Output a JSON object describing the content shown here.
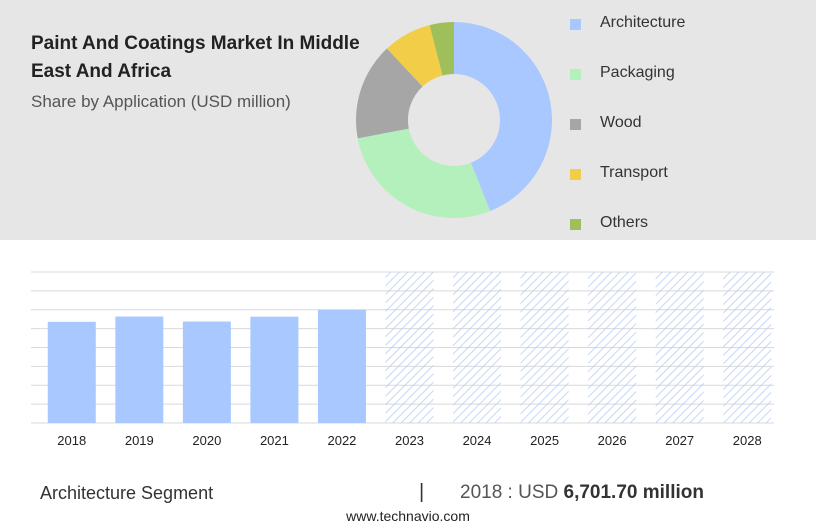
{
  "title": "Paint And Coatings Market In Middle East And Africa",
  "subtitle": "Share by Application (USD million)",
  "colors": {
    "Architecture": "#a8c8ff",
    "Packaging": "#b3f0bb",
    "Wood": "#a6a6a6",
    "Transport": "#f2cd47",
    "Others": "#9fbf5a",
    "forecast_hatch": "#b8cdf2",
    "grid": "#d9d9d9"
  },
  "chart_data": [
    {
      "type": "pie",
      "style": "donut",
      "categories": [
        "Architecture",
        "Packaging",
        "Wood",
        "Transport",
        "Others"
      ],
      "values": [
        44,
        28,
        16,
        8,
        4
      ],
      "legend": "right"
    },
    {
      "type": "bar",
      "categories": [
        "2018",
        "2019",
        "2020",
        "2021",
        "2022",
        "2023",
        "2024",
        "2025",
        "2026",
        "2027",
        "2028"
      ],
      "series": [
        {
          "name": "Architecture",
          "values": [
            6701.7,
            7050,
            6720,
            7040,
            7500,
            null,
            null,
            null,
            null,
            null,
            null
          ]
        }
      ],
      "forecast_categories": [
        "2023",
        "2024",
        "2025",
        "2026",
        "2027",
        "2028"
      ],
      "ylim": [
        0,
        10000
      ],
      "grid": true,
      "xlabel": "",
      "ylabel": ""
    }
  ],
  "footer": {
    "segment": "Architecture Segment",
    "separator": "|",
    "value_prefix": "2018 : USD",
    "value_bold": "6,701.70 million",
    "url": "www.technavio.com"
  }
}
